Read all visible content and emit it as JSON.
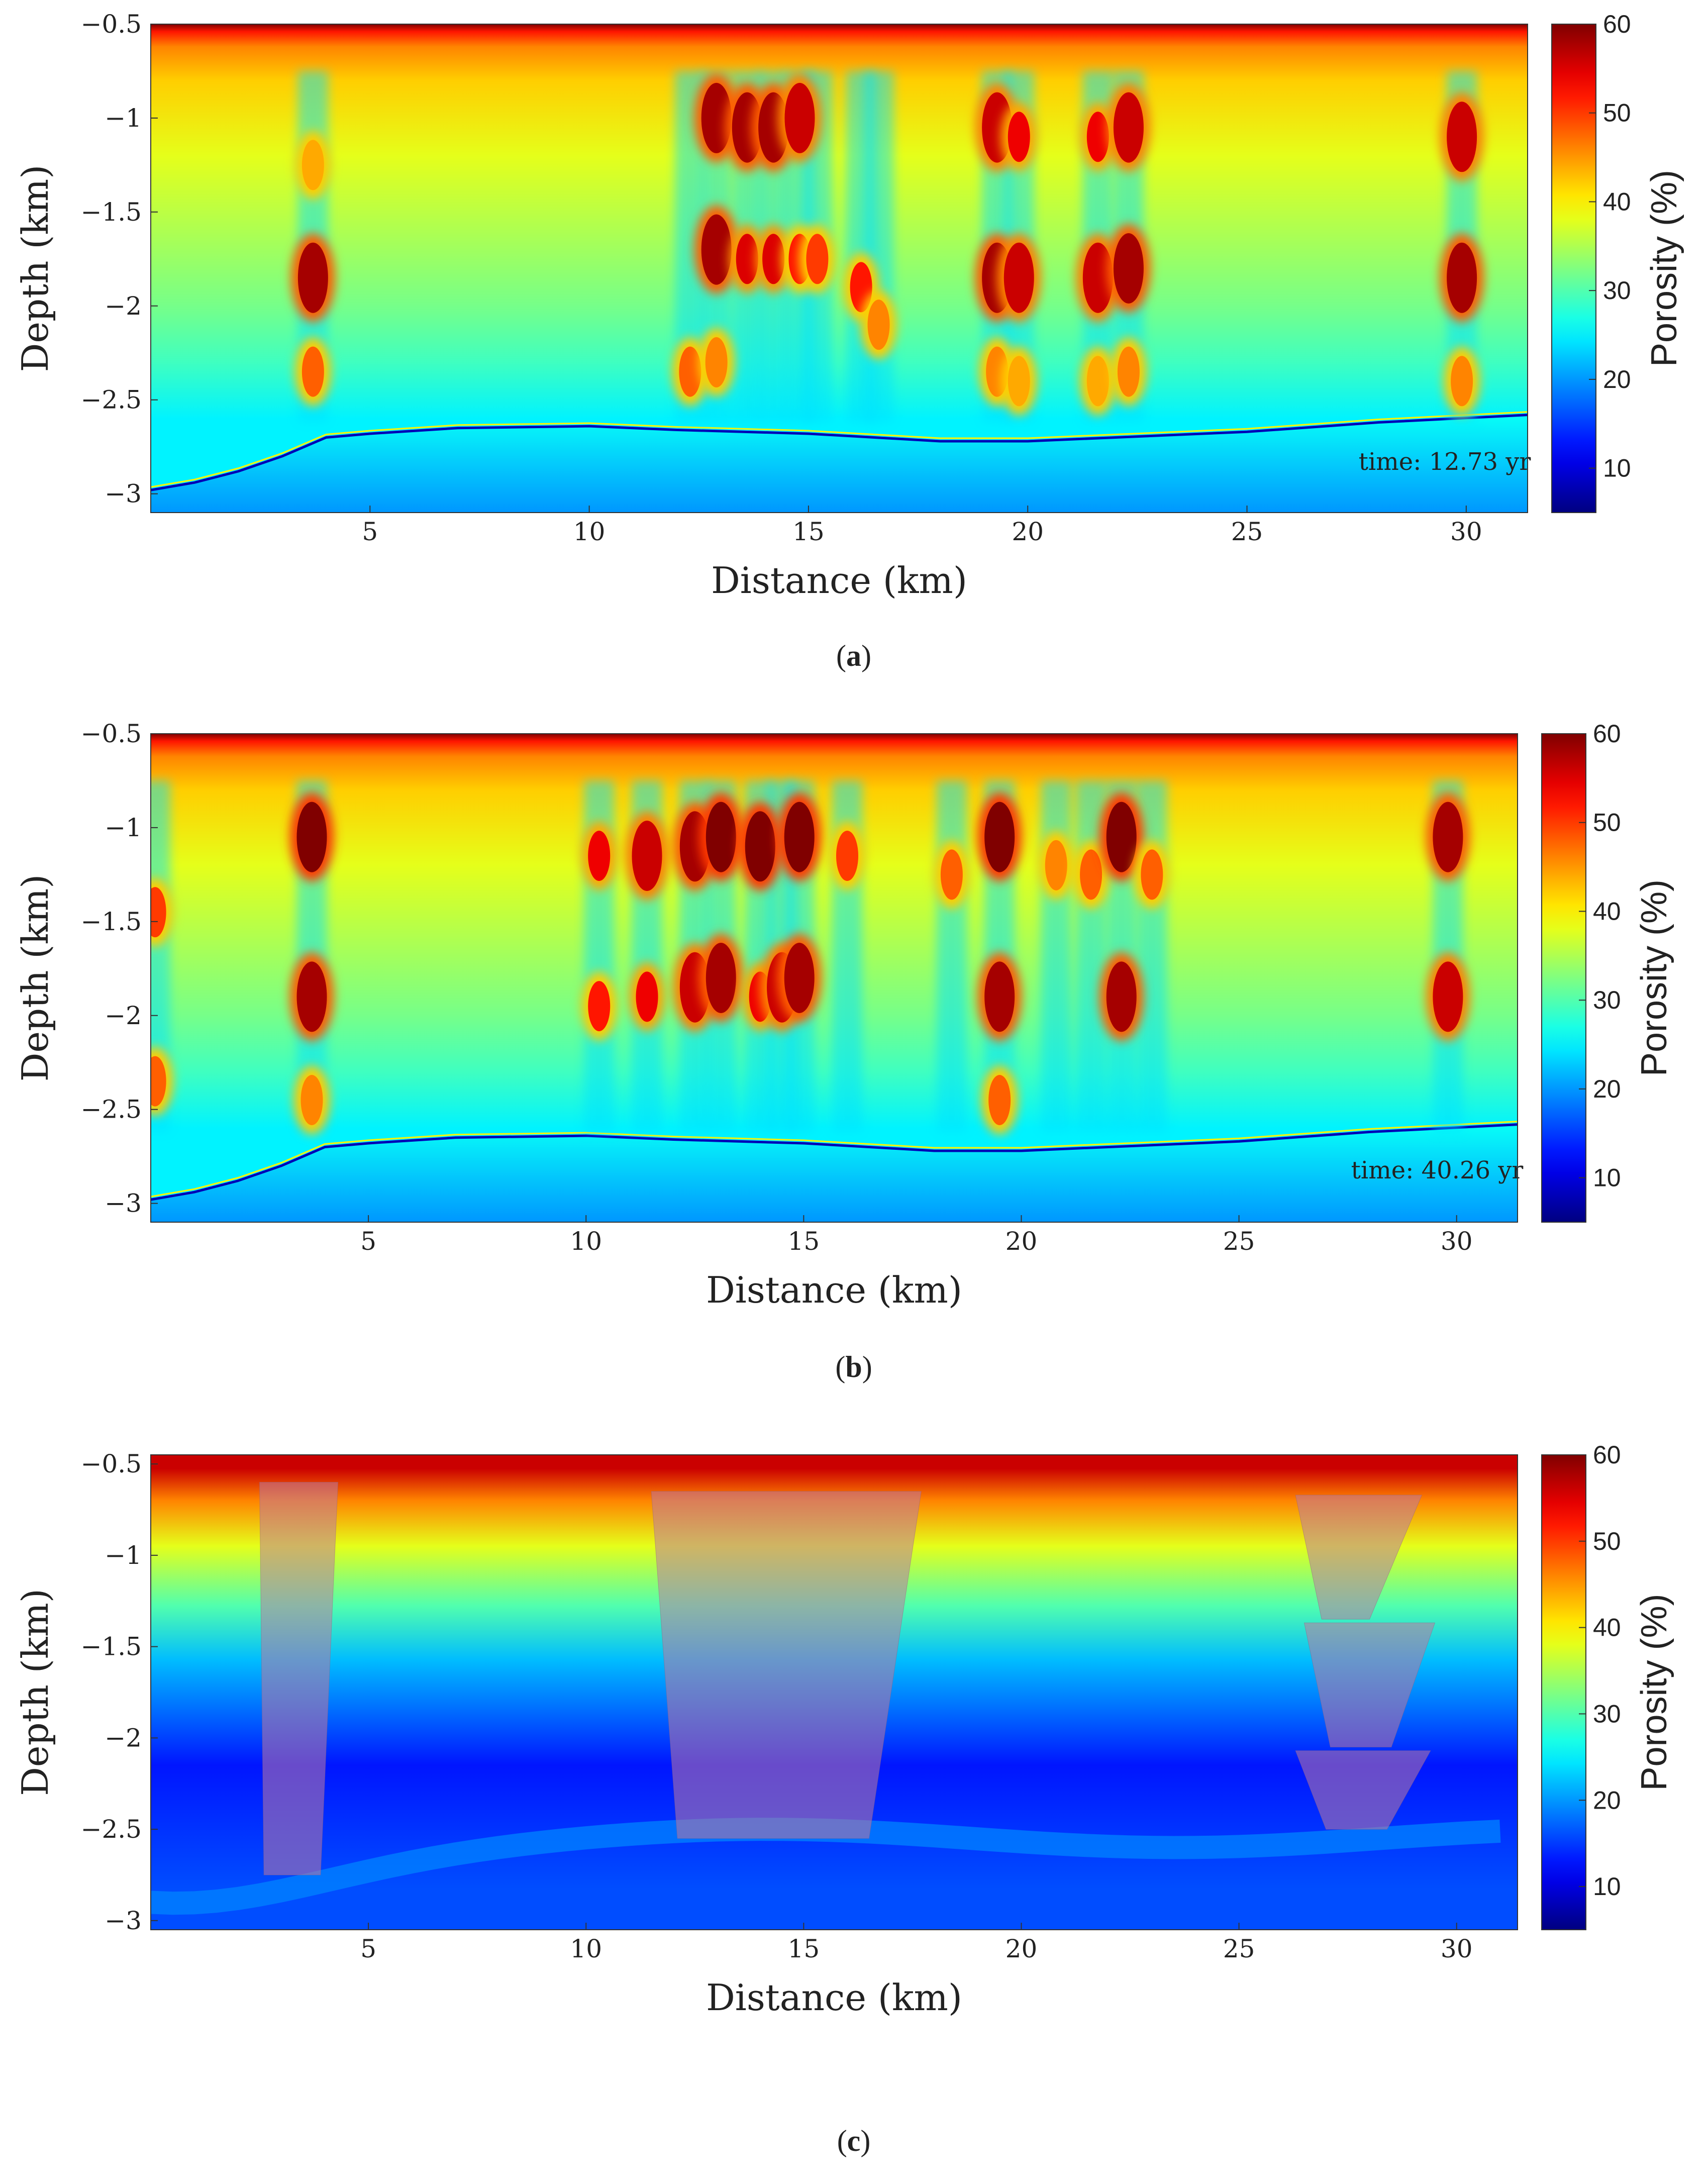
{
  "chart_data": [
    {
      "panel": "a",
      "type": "heatmap",
      "caption_open": "(",
      "caption_letter": "a",
      "caption_close": ")",
      "xlabel": "Distance (km)",
      "ylabel": "Depth (km)",
      "x_ticks": [
        5,
        10,
        15,
        20,
        25,
        30
      ],
      "y_ticks": [
        "-0.5",
        "-1",
        "-1.5",
        "-2",
        "-2.5",
        "-3"
      ],
      "xlim": [
        0,
        31.4
      ],
      "ylim": [
        -3.1,
        -0.5
      ],
      "colorbar_label": "Porosity (%)",
      "colorbar_ticks": [
        10,
        20,
        30,
        40,
        50,
        60
      ],
      "colorbar_range": [
        5,
        60
      ],
      "colormap": "jet",
      "annotation": "time:  12.73 yr",
      "annotation_position": "bottom-right",
      "basement_profile": {
        "x": [
          0,
          1,
          2,
          3,
          4,
          5,
          7,
          10,
          12,
          15,
          18,
          20,
          22,
          25,
          28,
          31.4
        ],
        "y": [
          -2.98,
          -2.94,
          -2.88,
          -2.8,
          -2.7,
          -2.68,
          -2.65,
          -2.64,
          -2.66,
          -2.68,
          -2.72,
          -2.72,
          -2.7,
          -2.67,
          -2.62,
          -2.58
        ]
      },
      "anomalies": [
        {
          "x": 3.7,
          "depth": -1.85,
          "value": 58
        },
        {
          "x": 3.7,
          "depth": -2.35,
          "value": 48
        },
        {
          "x": 3.7,
          "depth": -1.25,
          "value": 44
        },
        {
          "x": 12.9,
          "depth": -1.0,
          "value": 58
        },
        {
          "x": 13.6,
          "depth": -1.05,
          "value": 58
        },
        {
          "x": 14.2,
          "depth": -1.05,
          "value": 58
        },
        {
          "x": 14.8,
          "depth": -1.0,
          "value": 56
        },
        {
          "x": 12.9,
          "depth": -1.7,
          "value": 58
        },
        {
          "x": 13.6,
          "depth": -1.75,
          "value": 55
        },
        {
          "x": 14.2,
          "depth": -1.75,
          "value": 55
        },
        {
          "x": 14.8,
          "depth": -1.75,
          "value": 52
        },
        {
          "x": 15.2,
          "depth": -1.75,
          "value": 50
        },
        {
          "x": 12.3,
          "depth": -2.35,
          "value": 48
        },
        {
          "x": 12.9,
          "depth": -2.3,
          "value": 46
        },
        {
          "x": 16.2,
          "depth": -1.9,
          "value": 52
        },
        {
          "x": 16.6,
          "depth": -2.1,
          "value": 46
        },
        {
          "x": 19.3,
          "depth": -1.05,
          "value": 56
        },
        {
          "x": 19.8,
          "depth": -1.1,
          "value": 54
        },
        {
          "x": 19.3,
          "depth": -1.85,
          "value": 58
        },
        {
          "x": 19.8,
          "depth": -1.85,
          "value": 56
        },
        {
          "x": 19.3,
          "depth": -2.35,
          "value": 46
        },
        {
          "x": 19.8,
          "depth": -2.4,
          "value": 44
        },
        {
          "x": 21.6,
          "depth": -1.1,
          "value": 54
        },
        {
          "x": 22.3,
          "depth": -1.05,
          "value": 56
        },
        {
          "x": 21.6,
          "depth": -1.85,
          "value": 56
        },
        {
          "x": 22.3,
          "depth": -1.8,
          "value": 58
        },
        {
          "x": 21.6,
          "depth": -2.4,
          "value": 44
        },
        {
          "x": 22.3,
          "depth": -2.35,
          "value": 46
        },
        {
          "x": 29.9,
          "depth": -1.1,
          "value": 56
        },
        {
          "x": 29.9,
          "depth": -1.85,
          "value": 58
        },
        {
          "x": 29.9,
          "depth": -2.4,
          "value": 46
        }
      ]
    },
    {
      "panel": "b",
      "type": "heatmap",
      "caption_open": "(",
      "caption_letter": "b",
      "caption_close": ")",
      "xlabel": "Distance (km)",
      "ylabel": "Depth (km)",
      "x_ticks": [
        5,
        10,
        15,
        20,
        25,
        30
      ],
      "y_ticks": [
        "-0.5",
        "-1",
        "-1.5",
        "-2",
        "-2.5",
        "-3"
      ],
      "xlim": [
        0,
        31.4
      ],
      "ylim": [
        -3.1,
        -0.5
      ],
      "colorbar_label": "Porosity (%)",
      "colorbar_ticks": [
        10,
        20,
        30,
        40,
        50,
        60
      ],
      "colorbar_range": [
        5,
        60
      ],
      "colormap": "jet",
      "annotation": "time:  40.26 yr",
      "annotation_position": "bottom-right",
      "basement_profile": {
        "x": [
          0,
          1,
          2,
          3,
          4,
          5,
          7,
          10,
          12,
          15,
          18,
          20,
          22,
          25,
          28,
          31.4
        ],
        "y": [
          -2.98,
          -2.94,
          -2.88,
          -2.8,
          -2.7,
          -2.68,
          -2.65,
          -2.64,
          -2.66,
          -2.68,
          -2.72,
          -2.72,
          -2.7,
          -2.67,
          -2.62,
          -2.58
        ]
      },
      "anomalies": [
        {
          "x": 3.7,
          "depth": -1.05,
          "value": 60
        },
        {
          "x": 3.7,
          "depth": -1.9,
          "value": 58
        },
        {
          "x": 3.7,
          "depth": -2.45,
          "value": 46
        },
        {
          "x": 10.3,
          "depth": -1.15,
          "value": 54
        },
        {
          "x": 11.4,
          "depth": -1.15,
          "value": 56
        },
        {
          "x": 12.5,
          "depth": -1.1,
          "value": 58
        },
        {
          "x": 13.1,
          "depth": -1.05,
          "value": 60
        },
        {
          "x": 14.0,
          "depth": -1.1,
          "value": 60
        },
        {
          "x": 14.9,
          "depth": -1.05,
          "value": 60
        },
        {
          "x": 16.0,
          "depth": -1.15,
          "value": 50
        },
        {
          "x": 10.3,
          "depth": -1.95,
          "value": 52
        },
        {
          "x": 11.4,
          "depth": -1.9,
          "value": 54
        },
        {
          "x": 12.5,
          "depth": -1.85,
          "value": 56
        },
        {
          "x": 13.1,
          "depth": -1.8,
          "value": 58
        },
        {
          "x": 14.0,
          "depth": -1.9,
          "value": 54
        },
        {
          "x": 14.5,
          "depth": -1.85,
          "value": 56
        },
        {
          "x": 14.9,
          "depth": -1.8,
          "value": 58
        },
        {
          "x": 19.5,
          "depth": -1.05,
          "value": 60
        },
        {
          "x": 19.5,
          "depth": -1.9,
          "value": 58
        },
        {
          "x": 19.5,
          "depth": -2.45,
          "value": 48
        },
        {
          "x": 18.4,
          "depth": -1.25,
          "value": 48
        },
        {
          "x": 20.8,
          "depth": -1.2,
          "value": 46
        },
        {
          "x": 21.6,
          "depth": -1.25,
          "value": 48
        },
        {
          "x": 22.3,
          "depth": -1.05,
          "value": 60
        },
        {
          "x": 22.3,
          "depth": -1.9,
          "value": 58
        },
        {
          "x": 23.0,
          "depth": -1.25,
          "value": 48
        },
        {
          "x": 29.8,
          "depth": -1.05,
          "value": 58
        },
        {
          "x": 29.8,
          "depth": -1.9,
          "value": 56
        },
        {
          "x": 0.1,
          "depth": -1.45,
          "value": 50
        },
        {
          "x": 0.1,
          "depth": -2.35,
          "value": 48
        }
      ]
    },
    {
      "panel": "c",
      "type": "heatmap",
      "caption_open": "(",
      "caption_letter": "c",
      "caption_close": ")",
      "xlabel": "Distance (km)",
      "ylabel": "Depth (km)",
      "x_ticks": [
        5,
        10,
        15,
        20,
        25,
        30
      ],
      "y_ticks": [
        "-0.5",
        "-1",
        "-1.5",
        "-2",
        "-2.5",
        "-3"
      ],
      "xlim": [
        0,
        31.4
      ],
      "ylim": [
        -3.05,
        -0.45
      ],
      "colorbar_label": "Porosity (%)",
      "colorbar_ticks": [
        10,
        20,
        30,
        40,
        50,
        60
      ],
      "colorbar_range": [
        5,
        60
      ],
      "colormap": "jet",
      "layers": [
        {
          "depth_top": -0.45,
          "depth_bottom": -0.6,
          "value": 56
        },
        {
          "depth_top": -0.6,
          "depth_bottom": -0.8,
          "value": 46
        },
        {
          "depth_top": -0.8,
          "depth_bottom": -1.1,
          "value": 38
        },
        {
          "depth_top": -1.1,
          "depth_bottom": -1.45,
          "value": 30
        },
        {
          "depth_top": -1.45,
          "depth_bottom": -1.7,
          "value": 22
        },
        {
          "depth_top": -1.7,
          "depth_bottom": -2.6,
          "value": 13
        },
        {
          "depth_top": -2.6,
          "depth_bottom": -3.05,
          "value": 16
        }
      ],
      "overlays": [
        {
          "polygon_x": [
            2.5,
            4.3,
            3.9,
            2.6
          ],
          "polygon_y": [
            -0.6,
            -0.6,
            -2.75,
            -2.75
          ]
        },
        {
          "polygon_x": [
            11.5,
            17.7,
            16.5,
            12.1
          ],
          "polygon_y": [
            -0.65,
            -0.65,
            -2.55,
            -2.55
          ]
        },
        {
          "polygon_x": [
            26.3,
            29.2,
            28.0,
            26.9
          ],
          "polygon_y": [
            -0.67,
            -0.67,
            -1.35,
            -1.35
          ]
        },
        {
          "polygon_x": [
            26.5,
            29.5,
            28.5,
            27.1
          ],
          "polygon_y": [
            -1.37,
            -1.37,
            -2.05,
            -2.05
          ]
        },
        {
          "polygon_x": [
            26.3,
            29.4,
            28.4,
            27.0
          ],
          "polygon_y": [
            -2.07,
            -2.07,
            -2.5,
            -2.5
          ]
        }
      ]
    }
  ]
}
